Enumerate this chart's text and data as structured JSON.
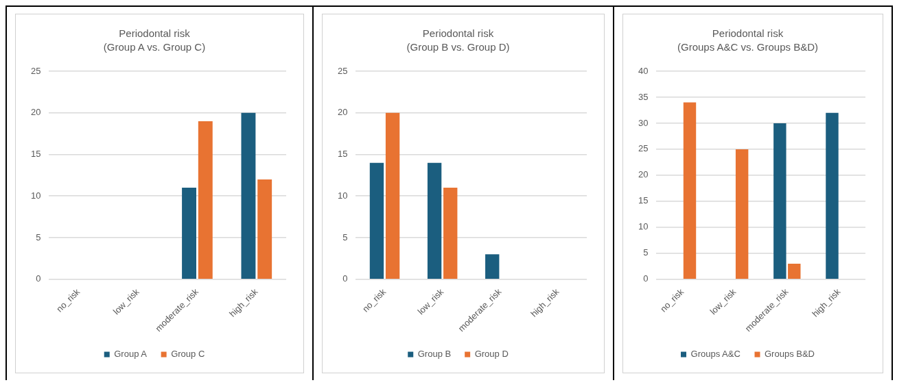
{
  "chart_data": [
    {
      "type": "bar",
      "title": "Periodontal risk",
      "subtitle": "(Group A vs. Group C)",
      "categories": [
        "no_risk",
        "low_risk",
        "moderate_risk",
        "high_risk"
      ],
      "series": [
        {
          "name": "Group A",
          "color": "#1b5e7f",
          "values": [
            0,
            0,
            11,
            20
          ]
        },
        {
          "name": "Group C",
          "color": "#e87332",
          "values": [
            0,
            0,
            19,
            12
          ]
        }
      ],
      "ylim": [
        0,
        25
      ],
      "yticks": [
        0,
        5,
        10,
        15,
        20,
        25
      ],
      "grid": "y",
      "legend": "bottom"
    },
    {
      "type": "bar",
      "title": "Periodontal risk",
      "subtitle": "(Group B vs. Group D)",
      "categories": [
        "no_risk",
        "low_risk",
        "moderate_risk",
        "high_risk"
      ],
      "series": [
        {
          "name": "Group B",
          "color": "#1b5e7f",
          "values": [
            14,
            14,
            3,
            0
          ]
        },
        {
          "name": "Group D",
          "color": "#e87332",
          "values": [
            20,
            11,
            0,
            0
          ]
        }
      ],
      "ylim": [
        0,
        25
      ],
      "yticks": [
        0,
        5,
        10,
        15,
        20,
        25
      ],
      "grid": "y",
      "legend": "bottom"
    },
    {
      "type": "bar",
      "title": "Periodontal risk",
      "subtitle": "(Groups A&C vs. Groups B&D)",
      "categories": [
        "no_risk",
        "low_risk",
        "moderate_risk",
        "high_risk"
      ],
      "series": [
        {
          "name": "Groups A&C",
          "color": "#1b5e7f",
          "values": [
            0,
            0,
            30,
            32
          ]
        },
        {
          "name": "Groups B&D",
          "color": "#e87332",
          "values": [
            34,
            25,
            3,
            0
          ]
        }
      ],
      "ylim": [
        0,
        40
      ],
      "yticks": [
        0,
        5,
        10,
        15,
        20,
        25,
        30,
        35,
        40
      ],
      "grid": "y",
      "legend": "bottom"
    }
  ]
}
